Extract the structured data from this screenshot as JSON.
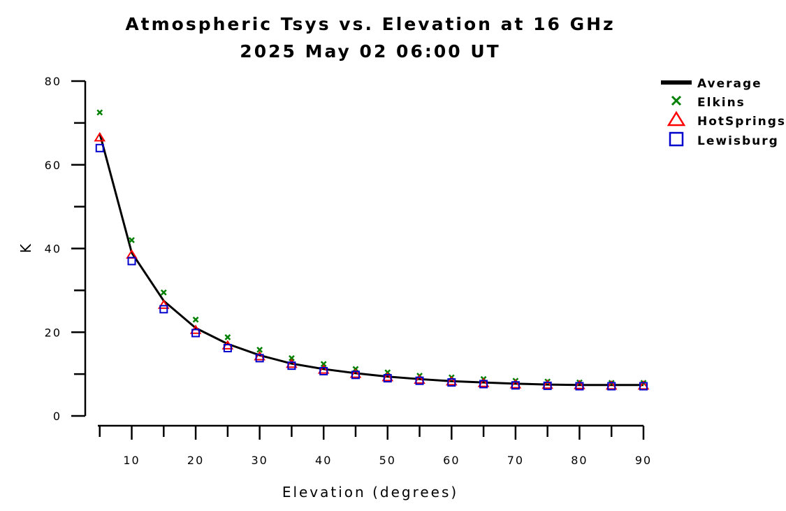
{
  "chart_data": {
    "type": "line",
    "title": "Atmospheric Tsys vs. Elevation at 16 GHz",
    "subtitle": "2025 May 02 06:00 UT",
    "xlabel": "Elevation (degrees)",
    "ylabel": "K",
    "xlim": [
      0,
      90
    ],
    "ylim": [
      0,
      80
    ],
    "xticks": [
      10,
      20,
      30,
      40,
      50,
      60,
      70,
      80,
      90
    ],
    "yticks": [
      0,
      20,
      40,
      60,
      80
    ],
    "grid": false,
    "legend_position": "top-right",
    "x": [
      5,
      10,
      15,
      20,
      25,
      30,
      35,
      40,
      45,
      50,
      55,
      60,
      65,
      70,
      75,
      80,
      85,
      90
    ],
    "series": [
      {
        "name": "Average",
        "style": "line",
        "color": "#000000",
        "values": [
          67.5,
          39,
          27.5,
          21,
          17.2,
          14.5,
          12.5,
          11.2,
          10.2,
          9.4,
          8.8,
          8.3,
          8.0,
          7.7,
          7.5,
          7.4,
          7.4,
          7.4
        ]
      },
      {
        "name": "Elkins",
        "style": "x-marker",
        "color": "#008000",
        "values": [
          72.5,
          42,
          29.5,
          23,
          18.8,
          15.8,
          13.8,
          12.4,
          11.2,
          10.4,
          9.6,
          9.2,
          8.8,
          8.4,
          8.2,
          8.0,
          7.9,
          7.9
        ]
      },
      {
        "name": "HotSprings",
        "style": "triangle-marker",
        "color": "#ff0000",
        "values": [
          66.5,
          38.5,
          26.5,
          20.5,
          16.8,
          14.2,
          12.4,
          11.0,
          10.0,
          9.2,
          8.6,
          8.2,
          7.8,
          7.5,
          7.4,
          7.3,
          7.2,
          7.2
        ]
      },
      {
        "name": "Lewisburg",
        "style": "square-marker",
        "color": "#0000cc",
        "values": [
          64,
          37,
          25.5,
          19.8,
          16.2,
          13.8,
          12.0,
          10.7,
          9.8,
          9.0,
          8.4,
          8.0,
          7.6,
          7.3,
          7.2,
          7.1,
          7.1,
          7.1
        ]
      }
    ]
  }
}
